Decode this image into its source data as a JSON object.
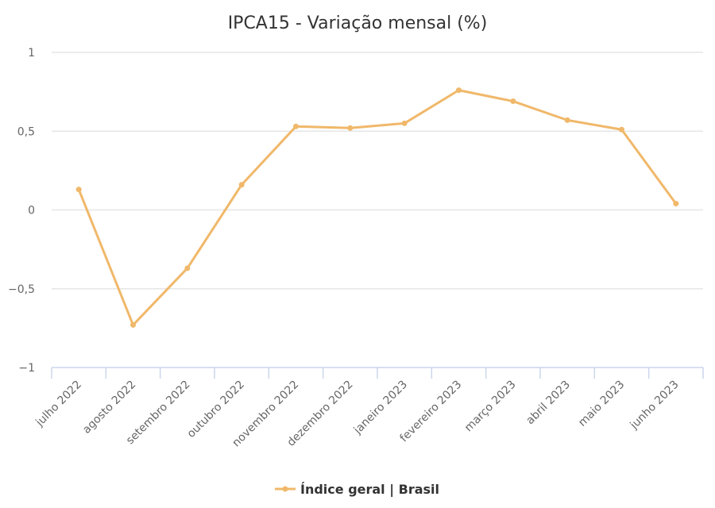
{
  "chart_data": {
    "type": "line",
    "title": "IPCA15 - Variação mensal (%)",
    "xlabel": "",
    "ylabel": "",
    "ylim": [
      -1,
      1
    ],
    "yticks": [
      1,
      0.5,
      0,
      -0.5,
      -1
    ],
    "ytick_labels": [
      "1",
      "0,5",
      "0",
      "−0,5",
      "−1"
    ],
    "grid": true,
    "legend_position": "bottom",
    "categories": [
      "julho 2022",
      "agosto 2022",
      "setembro 2022",
      "outubro 2022",
      "novembro 2022",
      "dezembro 2022",
      "janeiro 2023",
      "fevereiro 2023",
      "março 2023",
      "abril 2023",
      "maio 2023",
      "junho 2023"
    ],
    "series": [
      {
        "name": "Índice geral | Brasil",
        "color": "#f0b86a",
        "values": [
          0.13,
          -0.73,
          -0.37,
          0.16,
          0.53,
          0.52,
          0.55,
          0.76,
          0.69,
          0.57,
          0.51,
          0.04
        ]
      }
    ]
  }
}
